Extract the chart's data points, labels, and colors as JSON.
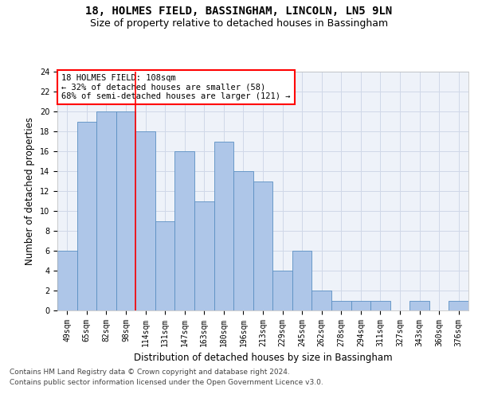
{
  "title_line1": "18, HOLMES FIELD, BASSINGHAM, LINCOLN, LN5 9LN",
  "title_line2": "Size of property relative to detached houses in Bassingham",
  "xlabel": "Distribution of detached houses by size in Bassingham",
  "ylabel": "Number of detached properties",
  "categories": [
    "49sqm",
    "65sqm",
    "82sqm",
    "98sqm",
    "114sqm",
    "131sqm",
    "147sqm",
    "163sqm",
    "180sqm",
    "196sqm",
    "213sqm",
    "229sqm",
    "245sqm",
    "262sqm",
    "278sqm",
    "294sqm",
    "311sqm",
    "327sqm",
    "343sqm",
    "360sqm",
    "376sqm"
  ],
  "values": [
    6,
    19,
    20,
    20,
    18,
    9,
    16,
    11,
    17,
    14,
    13,
    4,
    6,
    2,
    1,
    1,
    1,
    0,
    1,
    0,
    1
  ],
  "bar_color": "#aec6e8",
  "bar_edgecolor": "#5a8fc2",
  "red_line_index": 3,
  "annotation_text": "18 HOLMES FIELD: 108sqm\n← 32% of detached houses are smaller (58)\n68% of semi-detached houses are larger (121) →",
  "annotation_box_color": "white",
  "annotation_box_edgecolor": "red",
  "ylim": [
    0,
    24
  ],
  "yticks": [
    0,
    2,
    4,
    6,
    8,
    10,
    12,
    14,
    16,
    18,
    20,
    22,
    24
  ],
  "footer_line1": "Contains HM Land Registry data © Crown copyright and database right 2024.",
  "footer_line2": "Contains public sector information licensed under the Open Government Licence v3.0.",
  "background_color": "#eef2f9",
  "grid_color": "#d0d8e8",
  "title_fontsize": 10,
  "subtitle_fontsize": 9,
  "axis_label_fontsize": 8.5,
  "tick_fontsize": 7,
  "footer_fontsize": 6.5,
  "annotation_fontsize": 7.5
}
